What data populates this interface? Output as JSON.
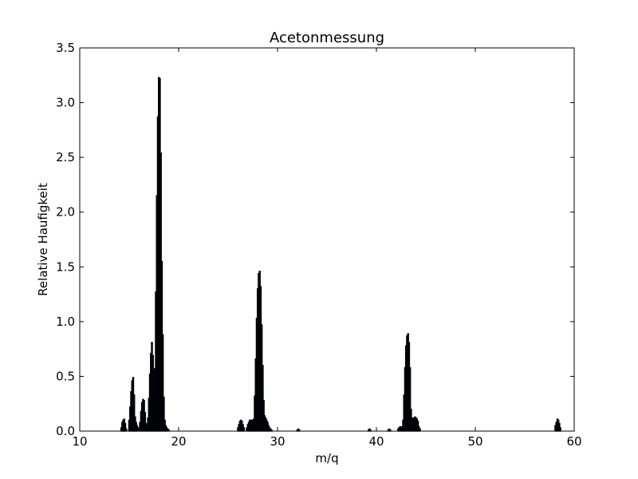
{
  "chart_data": {
    "type": "bar",
    "title": "Acetonmessung",
    "xlabel": "m/q",
    "ylabel": "Relative Haufigkeit",
    "xlim": [
      10,
      60
    ],
    "ylim": [
      0,
      3.5
    ],
    "xticks": [
      "10",
      "20",
      "30",
      "40",
      "50",
      "60"
    ],
    "yticks": [
      "0.0",
      "0.5",
      "1.0",
      "1.5",
      "2.0",
      "2.5",
      "3.0",
      "3.5"
    ],
    "xtick_values": [
      10,
      20,
      30,
      40,
      50,
      60
    ],
    "ytick_values": [
      0,
      0.5,
      1.0,
      1.5,
      2.0,
      2.5,
      3.0,
      3.5
    ],
    "bar_width": 0.1,
    "bar_color": "#1f2d9c",
    "edge_color": "#000000",
    "grid": false,
    "series": [
      {
        "x": [
          14.2,
          14.3,
          14.4,
          14.5,
          14.6,
          14.7,
          15.0,
          15.1,
          15.2,
          15.3,
          15.4,
          15.5,
          15.6,
          15.7,
          15.8,
          15.9,
          16.1,
          16.2,
          16.3,
          16.4,
          16.5,
          16.6,
          16.7,
          16.8,
          16.9,
          17.0,
          17.1,
          17.2,
          17.3,
          17.4,
          17.5,
          17.6,
          17.7,
          17.8,
          17.9,
          18.0,
          18.1,
          18.2,
          18.3,
          18.4,
          18.5,
          18.6,
          18.7,
          18.8,
          18.9,
          19.0,
          19.1,
          19.2,
          26.0,
          26.1,
          26.2,
          26.3,
          26.4,
          26.5,
          26.6,
          26.9,
          27.0,
          27.1,
          27.2,
          27.3,
          27.4,
          27.5,
          27.6,
          27.7,
          27.8,
          27.9,
          28.0,
          28.1,
          28.2,
          28.3,
          28.4,
          28.5,
          28.6,
          28.7,
          28.8,
          28.9,
          29.0,
          29.1,
          29.2,
          29.3,
          29.4,
          29.5,
          32.0,
          32.1,
          32.2,
          39.2,
          39.3,
          39.4,
          41.2,
          41.3,
          41.4,
          42.2,
          42.3,
          42.4,
          42.5,
          42.6,
          42.7,
          42.8,
          42.9,
          43.0,
          43.1,
          43.2,
          43.3,
          43.4,
          43.5,
          43.6,
          43.7,
          43.8,
          43.9,
          44.0,
          44.1,
          44.2,
          44.3,
          44.4,
          58.1,
          58.2,
          58.3,
          58.4,
          58.5,
          58.6
        ],
        "y": [
          0.03,
          0.08,
          0.1,
          0.11,
          0.07,
          0.02,
          0.1,
          0.22,
          0.36,
          0.46,
          0.49,
          0.33,
          0.13,
          0.08,
          0.05,
          0.03,
          0.08,
          0.18,
          0.26,
          0.29,
          0.28,
          0.17,
          0.07,
          0.04,
          0.12,
          0.3,
          0.52,
          0.71,
          0.81,
          0.69,
          0.31,
          0.57,
          1.27,
          2.15,
          2.87,
          3.23,
          3.22,
          2.54,
          1.55,
          0.88,
          0.31,
          0.1,
          0.05,
          0.03,
          0.02,
          0.01,
          0.0,
          0.0,
          0.03,
          0.06,
          0.09,
          0.1,
          0.09,
          0.06,
          0.03,
          0.03,
          0.06,
          0.08,
          0.1,
          0.1,
          0.1,
          0.09,
          0.11,
          0.32,
          0.66,
          1.03,
          1.3,
          1.44,
          1.46,
          1.32,
          0.97,
          0.6,
          0.28,
          0.14,
          0.12,
          0.1,
          0.08,
          0.05,
          0.03,
          0.02,
          0.01,
          0.0,
          0.01,
          0.02,
          0.01,
          0.01,
          0.02,
          0.01,
          0.01,
          0.02,
          0.01,
          0.02,
          0.03,
          0.04,
          0.04,
          0.03,
          0.1,
          0.33,
          0.58,
          0.78,
          0.87,
          0.89,
          0.81,
          0.58,
          0.2,
          0.11,
          0.12,
          0.12,
          0.13,
          0.12,
          0.11,
          0.09,
          0.04,
          0.02,
          0.05,
          0.08,
          0.11,
          0.1,
          0.07,
          0.03
        ]
      }
    ]
  }
}
